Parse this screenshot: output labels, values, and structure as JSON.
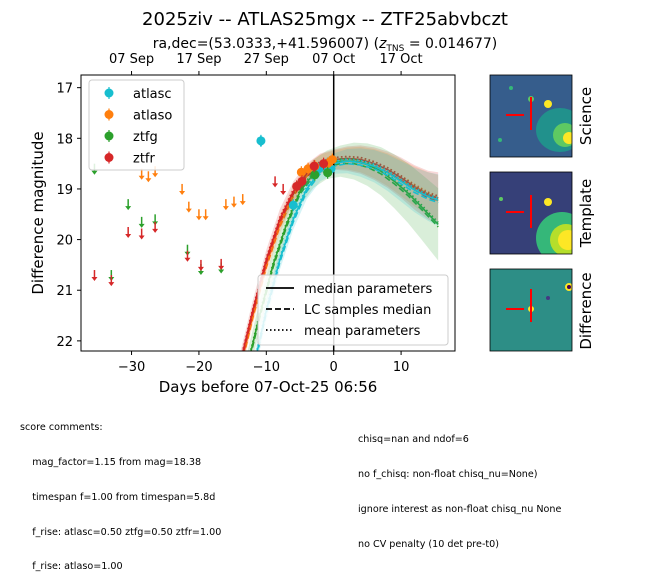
{
  "chart_data": {
    "type": "scatter",
    "title": "2025ziv -- ATLAS25mgx -- ZTF25abvbczt",
    "subtitle_prefix": "ra,dec=(53.0333,+41.596007) (",
    "subtitle_z_symbol": "z",
    "subtitle_z_sub": "TNS",
    "subtitle_z_value": " = 0.014677)",
    "xlabel": "Days before 07-Oct-25 06:56",
    "ylabel": "Difference magnitude",
    "xlim": [
      -37.5,
      18
    ],
    "ylim": [
      22.2,
      16.75
    ],
    "y_inverted": true,
    "x_ticks": [
      -30,
      -20,
      -10,
      0,
      10
    ],
    "x_tick_labels": [
      "−30",
      "−20",
      "−10",
      "0",
      "10"
    ],
    "y_ticks": [
      17,
      18,
      19,
      20,
      21,
      22
    ],
    "y_tick_labels": [
      "17",
      "18",
      "19",
      "20",
      "21",
      "22"
    ],
    "top_axis_ticks": [
      -30,
      -20,
      -10,
      0,
      10
    ],
    "top_axis_labels": [
      "07 Sep",
      "17 Sep",
      "27 Sep",
      "07 Oct",
      "17 Oct"
    ],
    "vline_x": 0,
    "series": [
      {
        "name": "atlasc",
        "color": "#17becf",
        "detections": [
          [
            -10.8,
            18.05
          ],
          [
            -6,
            19.32
          ],
          [
            -2.2,
            18.6
          ],
          [
            -0.4,
            18.6
          ]
        ],
        "upper_limits": [
          [
            -10.8,
            18.05
          ]
        ]
      },
      {
        "name": "atlaso",
        "color": "#ff7f0e",
        "detections": [
          [
            -4.8,
            18.67
          ],
          [
            -3.8,
            18.6
          ],
          [
            -2.8,
            18.55
          ],
          [
            -0.9,
            18.5
          ],
          [
            -0.2,
            18.42
          ]
        ],
        "upper_limits": [
          [
            -28.5,
            18.7
          ],
          [
            -27.5,
            18.75
          ],
          [
            -26.5,
            18.65
          ],
          [
            -22.5,
            19
          ],
          [
            -21.5,
            19.35
          ],
          [
            -20,
            19.5
          ],
          [
            -19,
            19.5
          ],
          [
            -16,
            19.3
          ],
          [
            -14.8,
            19.25
          ],
          [
            -13.5,
            19.2
          ]
        ]
      },
      {
        "name": "ztfg",
        "color": "#2ca02c",
        "detections": [
          [
            -5,
            18.92
          ],
          [
            -2.8,
            18.72
          ],
          [
            -0.9,
            18.68
          ]
        ],
        "upper_limits": [
          [
            -35.5,
            18.6
          ],
          [
            -30.5,
            19.3
          ],
          [
            -28.5,
            19.65
          ],
          [
            -26.5,
            19.6
          ],
          [
            -21.7,
            20.2
          ],
          [
            -19.7,
            20.58
          ],
          [
            -16.7,
            20.55
          ],
          [
            -33,
            20.7
          ]
        ]
      },
      {
        "name": "ztfr",
        "color": "#d62728",
        "detections": [
          [
            -5.5,
            18.95
          ],
          [
            -4.7,
            18.85
          ],
          [
            -2.9,
            18.55
          ],
          [
            -1.5,
            18.5
          ]
        ],
        "upper_limits": [
          [
            -35.5,
            20.7
          ],
          [
            -33,
            20.8
          ],
          [
            -30.5,
            19.85
          ],
          [
            -28.5,
            19.88
          ],
          [
            -26.5,
            19.75
          ],
          [
            -21.7,
            20.32
          ],
          [
            -19.7,
            20.5
          ],
          [
            -16.7,
            20.48
          ],
          [
            -8.7,
            18.85
          ],
          [
            -7.5,
            19.0
          ]
        ]
      }
    ],
    "models": [
      {
        "color": "#ff7f0e",
        "median": [
          [
            -14,
            22.6
          ],
          [
            -12,
            21.5
          ],
          [
            -10,
            20.5
          ],
          [
            -8,
            19.7
          ],
          [
            -6,
            19.1
          ],
          [
            -4,
            18.7
          ],
          [
            -2,
            18.5
          ],
          [
            0,
            18.42
          ],
          [
            2,
            18.4
          ],
          [
            4,
            18.42
          ],
          [
            6,
            18.5
          ],
          [
            8,
            18.62
          ],
          [
            10,
            18.78
          ],
          [
            12,
            18.95
          ],
          [
            14,
            19.1
          ],
          [
            15.5,
            19.18
          ]
        ],
        "band": 0.18
      },
      {
        "color": "#d62728",
        "median": [
          [
            -14,
            22.5
          ],
          [
            -12,
            21.4
          ],
          [
            -10,
            20.4
          ],
          [
            -8,
            19.6
          ],
          [
            -6,
            19.05
          ],
          [
            -4,
            18.7
          ],
          [
            -2,
            18.5
          ],
          [
            0,
            18.42
          ],
          [
            2,
            18.4
          ],
          [
            4,
            18.42
          ],
          [
            6,
            18.5
          ],
          [
            8,
            18.62
          ],
          [
            10,
            18.78
          ],
          [
            12,
            18.97
          ],
          [
            14,
            19.12
          ],
          [
            15.5,
            19.18
          ]
        ],
        "band": 0.2
      },
      {
        "color": "#2ca02c",
        "median": [
          [
            -13,
            22.6
          ],
          [
            -11,
            21.5
          ],
          [
            -9,
            20.5
          ],
          [
            -7,
            19.7
          ],
          [
            -5,
            19.05
          ],
          [
            -3,
            18.7
          ],
          [
            -1,
            18.52
          ],
          [
            1,
            18.45
          ],
          [
            3,
            18.45
          ],
          [
            5,
            18.52
          ],
          [
            7,
            18.65
          ],
          [
            9,
            18.85
          ],
          [
            11,
            19.08
          ],
          [
            13,
            19.35
          ],
          [
            15.5,
            19.7
          ]
        ],
        "band": 0.28
      },
      {
        "color": "#17becf",
        "median": [
          [
            -12,
            22.6
          ],
          [
            -10,
            21.4
          ],
          [
            -8,
            20.4
          ],
          [
            -6,
            19.6
          ],
          [
            -4,
            19.0
          ],
          [
            -2,
            18.65
          ],
          [
            0,
            18.5
          ],
          [
            2,
            18.45
          ],
          [
            4,
            18.48
          ],
          [
            6,
            18.55
          ],
          [
            8,
            18.68
          ],
          [
            10,
            18.85
          ],
          [
            12,
            19.02
          ],
          [
            14,
            19.15
          ],
          [
            15.5,
            19.22
          ]
        ],
        "band": 0.2
      }
    ],
    "legend_lines": [
      {
        "label": "median parameters",
        "dash": "solid"
      },
      {
        "label": "LC samples median",
        "dash": "dashed"
      },
      {
        "label": "mean parameters",
        "dash": "dotted"
      }
    ],
    "legend_placement": "series legend top-left, line-style legend bottom-right",
    "stamps": [
      {
        "label": "Science",
        "image": "science"
      },
      {
        "label": "Template",
        "image": "template"
      },
      {
        "label": "Difference",
        "image": "difference"
      }
    ]
  },
  "comments": {
    "left": [
      "score comments:",
      "    mag_factor=1.15 from mag=18.38",
      "    timespan f=1.00 from timespan=5.8d",
      "    f_rise: atlasc=0.50 ztfg=0.50 ztfr=1.00",
      "    f_rise: atlaso=1.00"
    ],
    "right": [
      "chisq=nan and ndof=6",
      "no f_chisq: non-float chisq_nu=None)",
      "ignore interest as non-float chisq_nu None",
      "no CV penalty (10 det pre-t0)"
    ]
  }
}
